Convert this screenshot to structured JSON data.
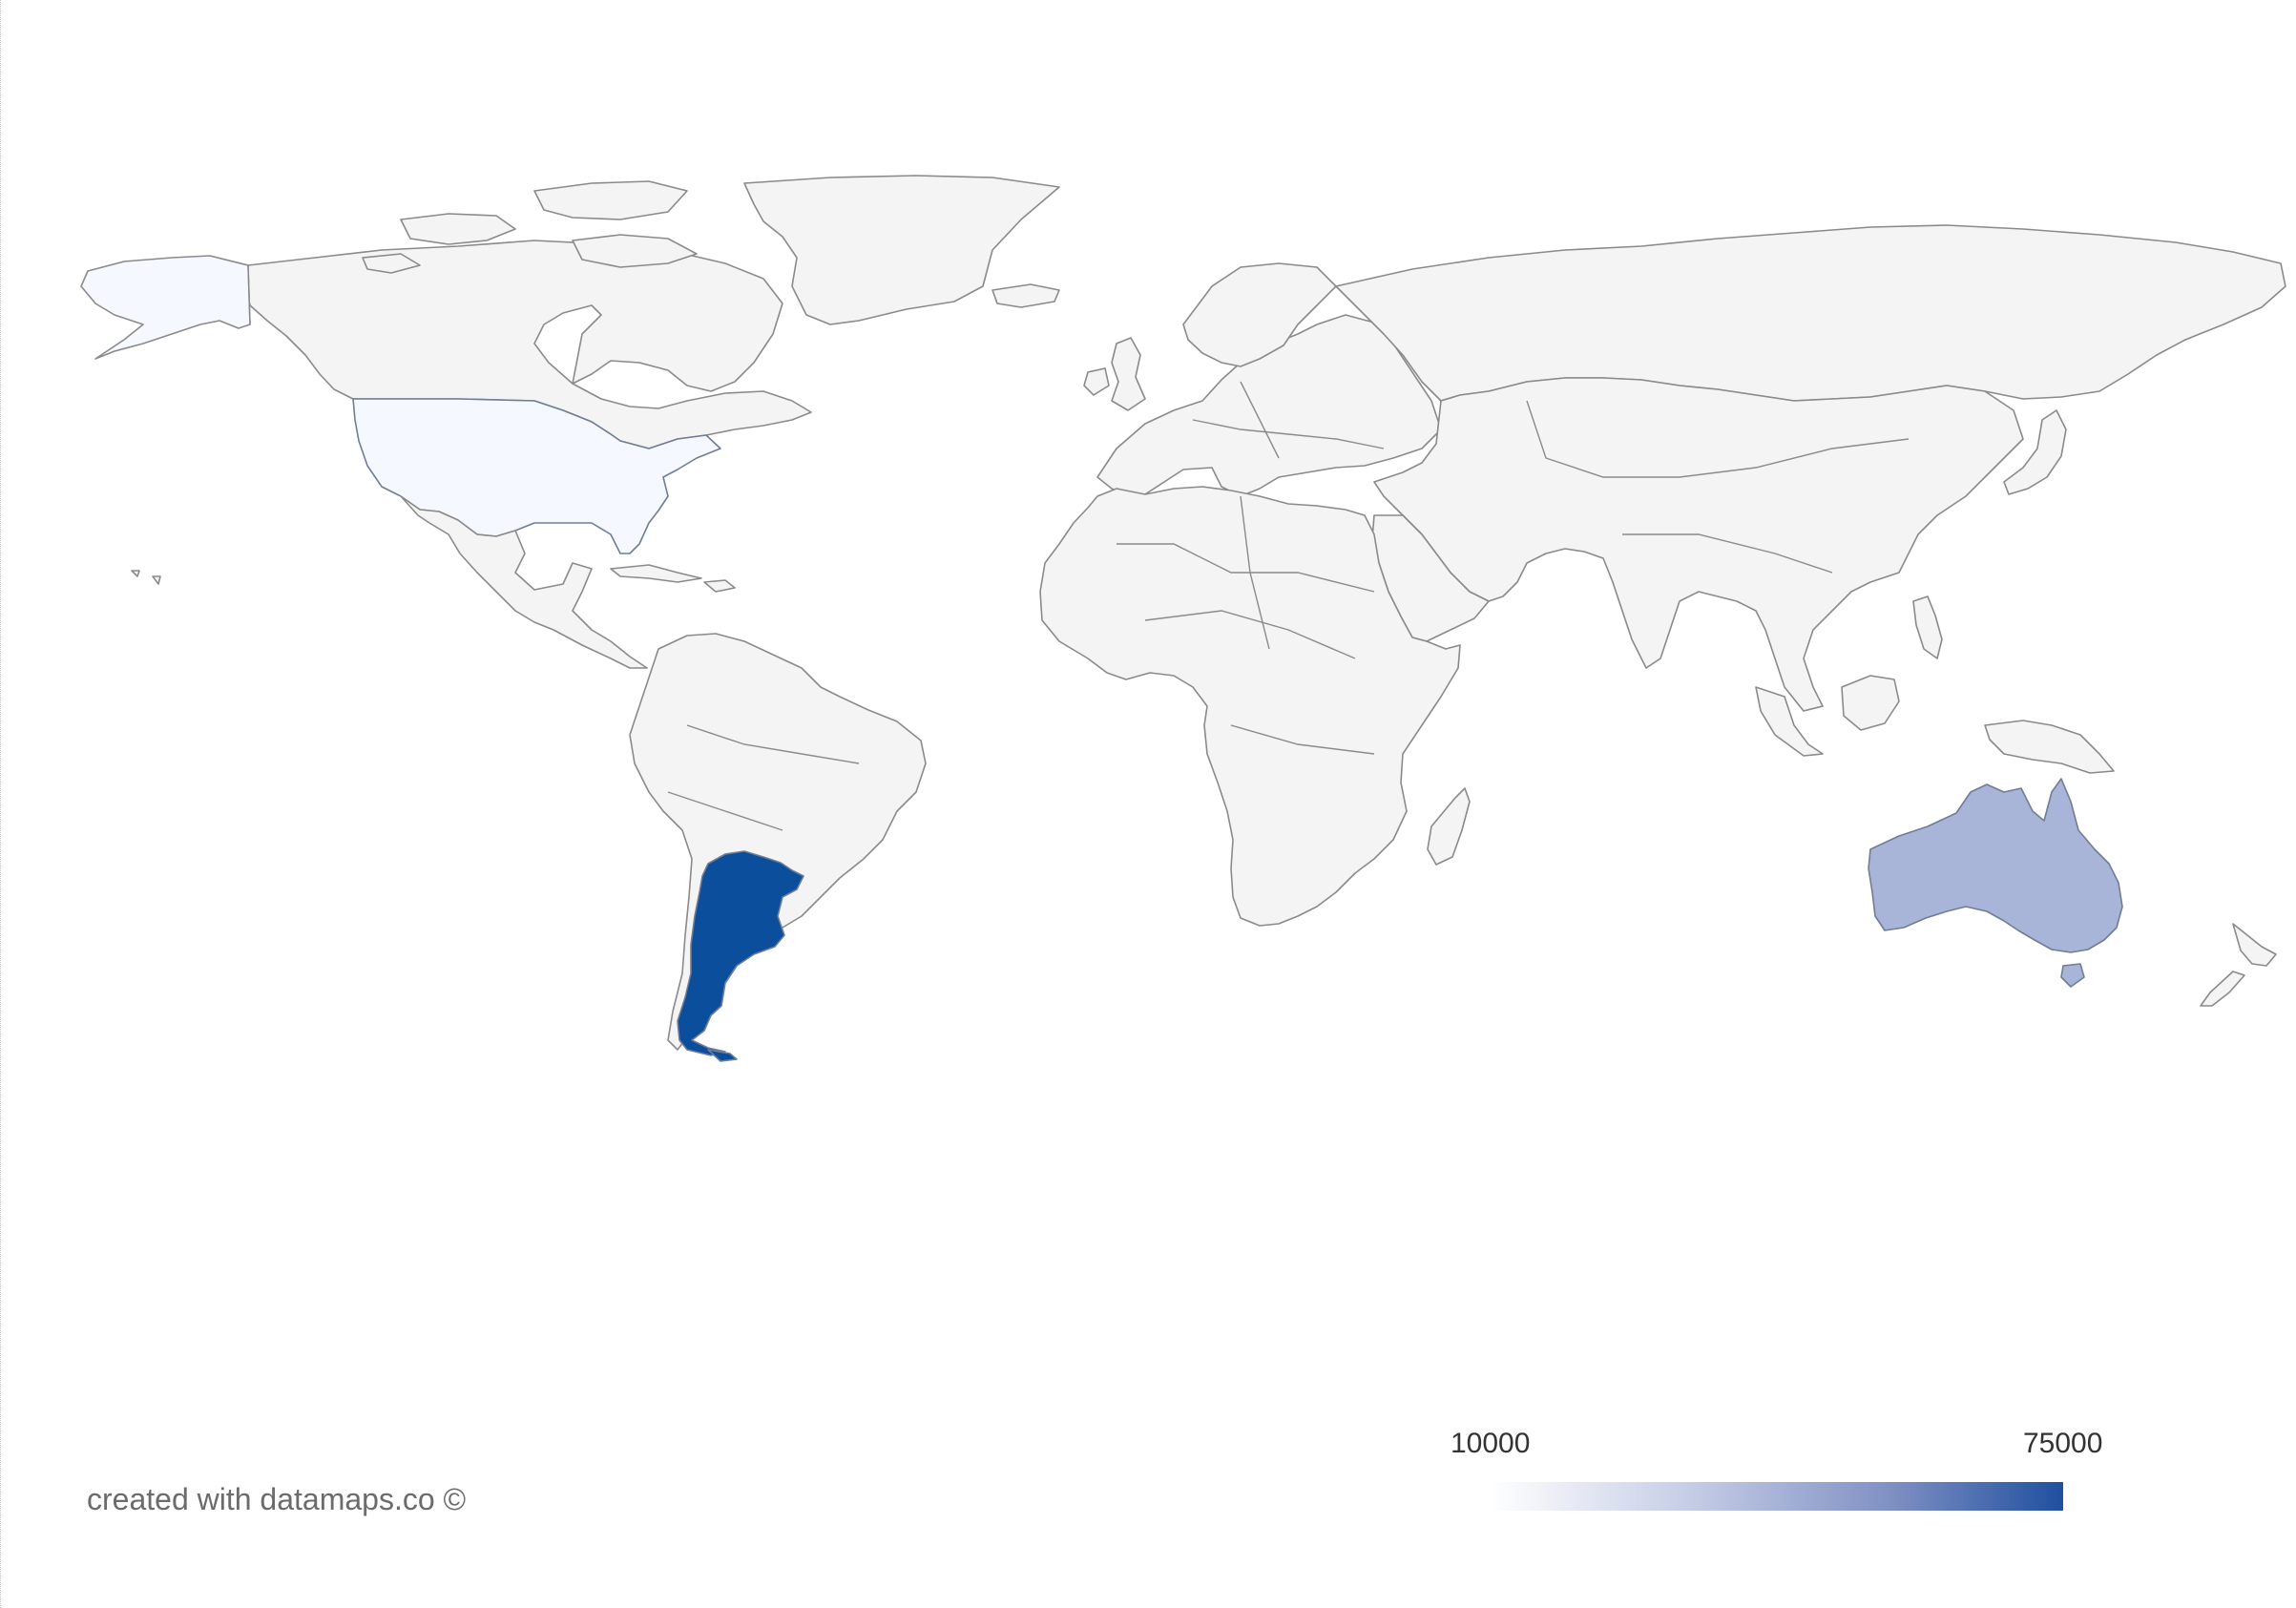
{
  "map": {
    "type": "choropleth",
    "projection": "equirectangular-world",
    "base_land_color": "#f4f4f4",
    "border_color": "#8a8a8a",
    "regions": [
      {
        "name": "Argentina",
        "color": "#0b4e9c"
      },
      {
        "name": "Australia",
        "color": "#a9b5d8"
      },
      {
        "name": "United States",
        "color": "#f5f8fe"
      }
    ]
  },
  "legend": {
    "min_label": "10000",
    "max_label": "75000",
    "color_low": "#ffffff",
    "color_high": "#1f4f9f"
  },
  "footer": {
    "credit": "created with datamaps.co ©"
  }
}
